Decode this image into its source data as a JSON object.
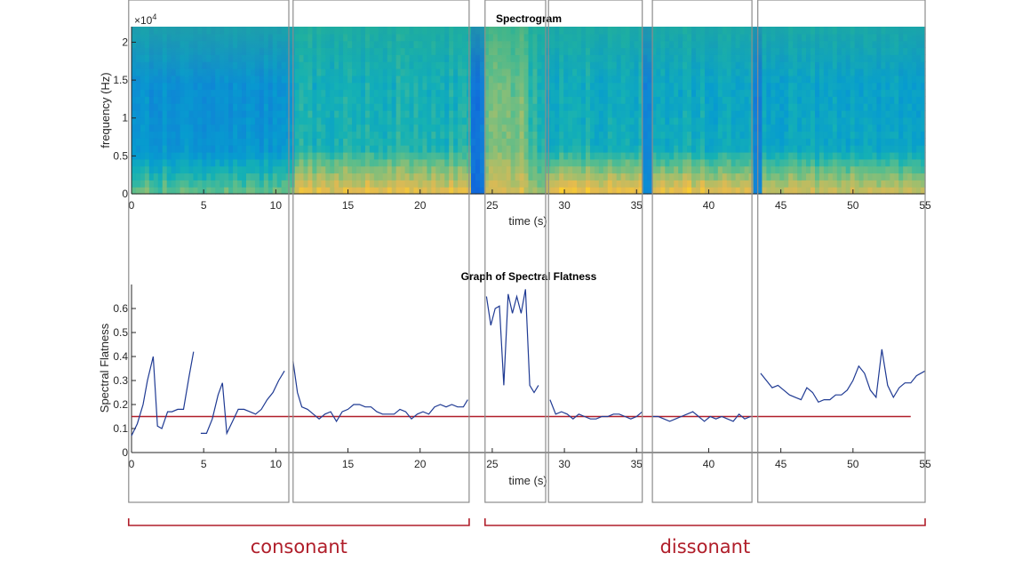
{
  "chart_data": [
    {
      "type": "heatmap",
      "title": "Spectrogram",
      "xlabel": "time (s)",
      "ylabel": "frequency (Hz)",
      "y_exponent": "×10",
      "y_exponent_power": "4",
      "xlim": [
        0,
        55
      ],
      "ylim": [
        0,
        22050
      ],
      "x_ticks": [
        0,
        5,
        10,
        15,
        20,
        25,
        30,
        35,
        40,
        45,
        50,
        55
      ],
      "y_ticks": [
        0,
        0.5,
        1,
        1.5,
        2
      ],
      "colormap": "parula",
      "segments": [
        {
          "start": 0,
          "end": 11.2,
          "level": 0.38,
          "low_band": 0.62
        },
        {
          "start": 11.2,
          "end": 23.5,
          "level": 0.52,
          "low_band": 0.82
        },
        {
          "start": 23.5,
          "end": 24.5,
          "level": 0.25,
          "low_band": 0.18
        },
        {
          "start": 24.5,
          "end": 27.5,
          "level": 0.66,
          "low_band": 0.78
        },
        {
          "start": 27.5,
          "end": 28.7,
          "level": 0.55,
          "low_band": 0.7
        },
        {
          "start": 28.7,
          "end": 35.4,
          "level": 0.5,
          "low_band": 0.85
        },
        {
          "start": 35.4,
          "end": 36.1,
          "level": 0.3,
          "low_band": 0.3
        },
        {
          "start": 36.1,
          "end": 43,
          "level": 0.48,
          "low_band": 0.83
        },
        {
          "start": 43,
          "end": 43.6,
          "level": 0.3,
          "low_band": 0.3
        },
        {
          "start": 43.6,
          "end": 55,
          "level": 0.46,
          "low_band": 0.78
        }
      ]
    },
    {
      "type": "line",
      "title": "Graph of Spectral Flatness",
      "xlabel": "time (s)",
      "ylabel": "Spectral Flatness",
      "xlim": [
        0,
        55
      ],
      "ylim": [
        0,
        0.7
      ],
      "x_ticks": [
        0,
        5,
        10,
        15,
        20,
        25,
        30,
        35,
        40,
        45,
        50,
        55
      ],
      "y_ticks": [
        0,
        0.1,
        0.2,
        0.3,
        0.4,
        0.5,
        0.6
      ],
      "line_color": "#1f3a93",
      "threshold": {
        "y": 0.15,
        "x_start": 0,
        "x_end": 54,
        "color": "#b01e2a"
      },
      "series": [
        {
          "x": [
            0,
            0.4,
            0.8,
            1.1,
            1.5,
            1.8,
            2.1,
            2.5,
            2.8,
            3.2,
            3.6,
            4.0,
            4.3
          ],
          "y": [
            0.07,
            0.12,
            0.2,
            0.3,
            0.4,
            0.11,
            0.1,
            0.17,
            0.17,
            0.18,
            0.18,
            0.32,
            0.42
          ]
        },
        {
          "x": [
            4.8,
            5.2,
            5.6,
            6.0,
            6.3,
            6.6,
            7.0,
            7.4,
            7.8,
            8.2,
            8.6,
            9.0,
            9.4,
            9.8,
            10.2,
            10.6
          ],
          "y": [
            0.08,
            0.08,
            0.14,
            0.24,
            0.29,
            0.08,
            0.13,
            0.18,
            0.18,
            0.17,
            0.16,
            0.18,
            0.22,
            0.25,
            0.3,
            0.34
          ]
        },
        {
          "x": [
            11.2,
            11.5,
            11.8,
            12.2,
            12.6,
            13.0,
            13.4,
            13.8,
            14.2,
            14.6,
            15.0,
            15.4,
            15.8,
            16.2,
            16.6,
            17.0,
            17.4,
            17.8,
            18.2,
            18.6,
            19.0,
            19.4,
            19.8,
            20.2,
            20.6,
            21.0,
            21.4,
            21.8,
            22.2,
            22.6,
            23.0,
            23.3
          ],
          "y": [
            0.38,
            0.25,
            0.19,
            0.18,
            0.16,
            0.14,
            0.16,
            0.17,
            0.13,
            0.17,
            0.18,
            0.2,
            0.2,
            0.19,
            0.19,
            0.17,
            0.16,
            0.16,
            0.16,
            0.18,
            0.17,
            0.14,
            0.16,
            0.17,
            0.16,
            0.19,
            0.2,
            0.19,
            0.2,
            0.19,
            0.19,
            0.22
          ]
        },
        {
          "x": [
            24.6,
            24.9,
            25.2,
            25.5,
            25.8,
            26.1,
            26.4,
            26.7,
            27.0,
            27.3,
            27.6,
            27.9,
            28.2
          ],
          "y": [
            0.65,
            0.53,
            0.6,
            0.61,
            0.28,
            0.66,
            0.58,
            0.65,
            0.58,
            0.68,
            0.28,
            0.25,
            0.28
          ]
        },
        {
          "x": [
            29.0,
            29.4,
            29.8,
            30.2,
            30.6,
            31.0,
            31.4,
            31.8,
            32.2,
            32.6,
            33.0,
            33.4,
            33.8,
            34.2,
            34.6,
            35.0,
            35.4
          ],
          "y": [
            0.22,
            0.16,
            0.17,
            0.16,
            0.14,
            0.16,
            0.15,
            0.14,
            0.14,
            0.15,
            0.15,
            0.16,
            0.16,
            0.15,
            0.14,
            0.15,
            0.17
          ]
        },
        {
          "x": [
            36.1,
            36.5,
            36.9,
            37.3,
            37.7,
            38.1,
            38.5,
            38.9,
            39.3,
            39.7,
            40.1,
            40.5,
            40.9,
            41.3,
            41.7,
            42.1,
            42.5,
            42.9
          ],
          "y": [
            0.15,
            0.15,
            0.14,
            0.13,
            0.14,
            0.15,
            0.16,
            0.17,
            0.15,
            0.13,
            0.15,
            0.14,
            0.15,
            0.14,
            0.13,
            0.16,
            0.14,
            0.15
          ]
        },
        {
          "x": [
            43.6,
            44.0,
            44.4,
            44.8,
            45.2,
            45.6,
            46.0,
            46.4,
            46.8,
            47.2,
            47.6,
            48.0,
            48.4,
            48.8,
            49.2,
            49.6,
            50.0,
            50.4,
            50.8,
            51.2,
            51.6,
            52.0,
            52.4,
            52.8,
            53.2,
            53.6,
            54.0,
            54.4,
            55.0
          ],
          "y": [
            0.33,
            0.3,
            0.27,
            0.28,
            0.26,
            0.24,
            0.23,
            0.22,
            0.27,
            0.25,
            0.21,
            0.22,
            0.22,
            0.24,
            0.24,
            0.26,
            0.3,
            0.36,
            0.33,
            0.26,
            0.23,
            0.43,
            0.28,
            0.23,
            0.27,
            0.29,
            0.29,
            0.32,
            0.34
          ]
        }
      ]
    }
  ],
  "regions": [
    {
      "start": -0.2,
      "end": 10.9
    },
    {
      "start": 11.2,
      "end": 23.4
    },
    {
      "start": 24.5,
      "end": 28.7
    },
    {
      "start": 28.9,
      "end": 35.4
    },
    {
      "start": 36.1,
      "end": 43.0
    },
    {
      "start": 43.4,
      "end": 55.0
    }
  ],
  "brackets": [
    {
      "label": "consonant",
      "start": -0.2,
      "end": 23.4
    },
    {
      "label": "dissonant",
      "start": 24.5,
      "end": 55.0
    }
  ],
  "colors": {
    "annotation": "#b01e2a",
    "region_box": "#8c8c8c",
    "line": "#1f3a93"
  }
}
